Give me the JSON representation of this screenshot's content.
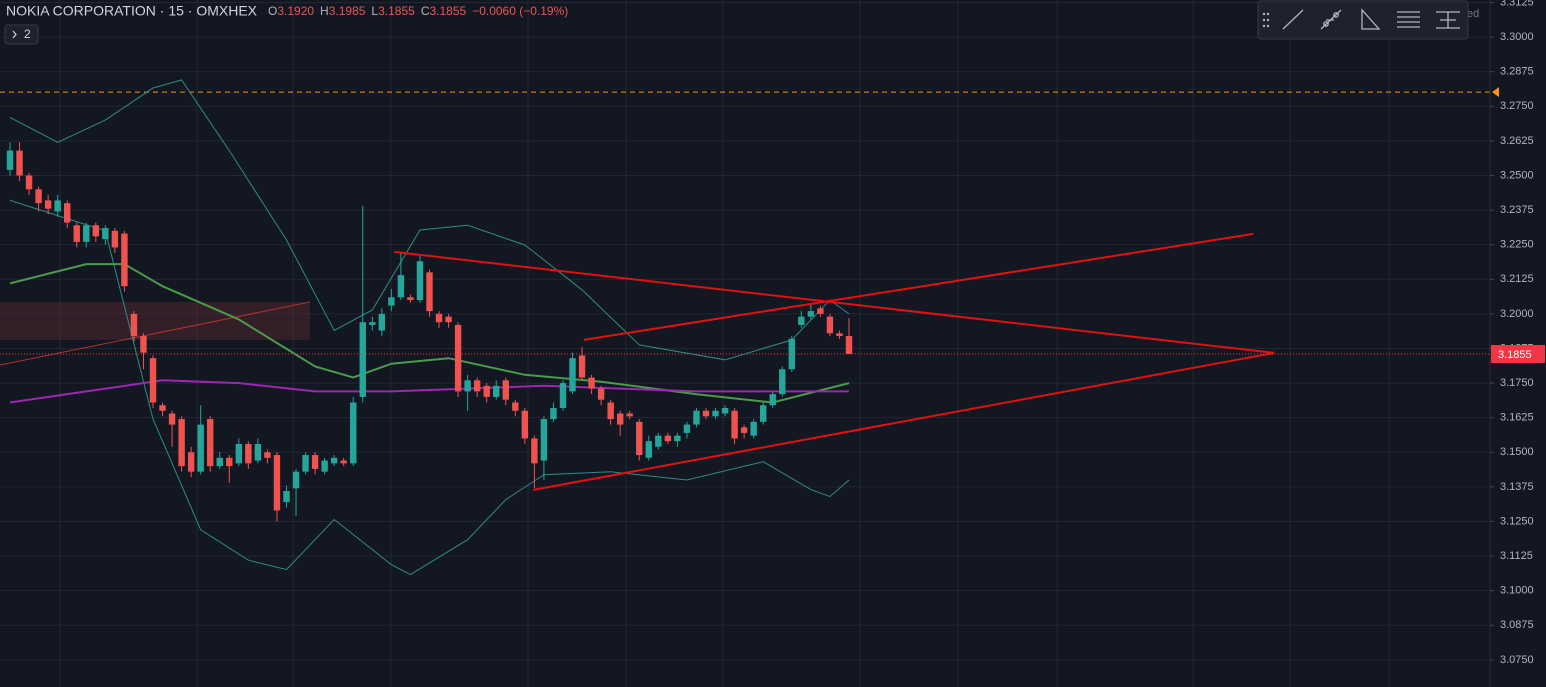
{
  "chart_data": {
    "type": "candlestick",
    "title": "NOKIA CORPORATION · 15 · OMXHEX",
    "ohlc_legend": [
      {
        "label": "O",
        "value": "3.1920"
      },
      {
        "label": "H",
        "value": "3.1985"
      },
      {
        "label": "L",
        "value": "3.1855"
      },
      {
        "label": "C",
        "value": "3.1855"
      }
    ],
    "change": "−0.0060 (−0.19%)",
    "indicators_collapsed": "2",
    "status_fragment": "ed",
    "up_color": "#26a69a",
    "down_color": "#ef5350",
    "ylim": [
      3.0652,
      3.3134
    ],
    "yticks": [
      {
        "value": 3.3125,
        "label": "3.3125"
      },
      {
        "value": 3.3,
        "label": "3.3000"
      },
      {
        "value": 3.2875,
        "label": "3.2875"
      },
      {
        "value": 3.275,
        "label": "3.2750"
      },
      {
        "value": 3.2625,
        "label": "3.2625"
      },
      {
        "value": 3.25,
        "label": "3.2500"
      },
      {
        "value": 3.2375,
        "label": "3.2375"
      },
      {
        "value": 3.225,
        "label": "3.2250"
      },
      {
        "value": 3.2125,
        "label": "3.2125"
      },
      {
        "value": 3.2,
        "label": "3.2000"
      },
      {
        "value": 3.1875,
        "label": "3.1875"
      },
      {
        "value": 3.175,
        "label": "3.1750"
      },
      {
        "value": 3.1625,
        "label": "3.1625"
      },
      {
        "value": 3.15,
        "label": "3.1500"
      },
      {
        "value": 3.1375,
        "label": "3.1375"
      },
      {
        "value": 3.125,
        "label": "3.1250"
      },
      {
        "value": 3.1125,
        "label": "3.1125"
      },
      {
        "value": 3.1,
        "label": "3.1000"
      },
      {
        "value": 3.0875,
        "label": "3.0875"
      },
      {
        "value": 3.075,
        "label": "3.0750"
      }
    ],
    "grid": true,
    "last_price": {
      "value": 3.1855,
      "label": "3.1855",
      "color": "#f23645"
    },
    "candles": {
      "open": [
        3.252,
        3.259,
        3.25,
        3.245,
        3.241,
        3.237,
        3.24,
        3.232,
        3.226,
        3.232,
        3.227,
        3.23,
        3.229,
        3.2,
        3.192,
        3.184,
        3.167,
        3.164,
        3.162,
        3.15,
        3.143,
        3.162,
        3.145,
        3.148,
        3.146,
        3.153,
        3.147,
        3.15,
        3.149,
        3.132,
        3.137,
        3.143,
        3.149,
        3.143,
        3.146,
        3.147,
        3.146,
        3.17,
        3.196,
        3.194,
        3.203,
        3.206,
        3.206,
        3.205,
        3.215,
        3.2,
        3.199,
        3.196,
        3.172,
        3.176,
        3.174,
        3.17,
        3.176,
        3.168,
        3.165,
        3.155,
        3.147,
        3.162,
        3.166,
        3.172,
        3.185,
        3.177,
        3.173,
        3.168,
        3.164,
        3.164,
        3.161,
        3.148,
        3.152,
        3.156,
        3.154,
        3.157,
        3.16,
        3.165,
        3.163,
        3.164,
        3.165,
        3.159,
        3.156,
        3.161,
        3.167,
        3.171,
        3.18,
        3.196,
        3.199,
        3.202,
        3.199,
        3.193,
        3.192
      ],
      "high": [
        3.262,
        3.262,
        3.251,
        3.246,
        3.243,
        3.243,
        3.241,
        3.233,
        3.233,
        3.233,
        3.232,
        3.231,
        3.23,
        3.201,
        3.193,
        3.185,
        3.168,
        3.165,
        3.163,
        3.152,
        3.167,
        3.163,
        3.15,
        3.149,
        3.155,
        3.154,
        3.155,
        3.151,
        3.15,
        3.138,
        3.144,
        3.15,
        3.15,
        3.148,
        3.149,
        3.148,
        3.17,
        3.239,
        3.199,
        3.202,
        3.209,
        3.222,
        3.207,
        3.221,
        3.216,
        3.201,
        3.2,
        3.197,
        3.178,
        3.177,
        3.175,
        3.176,
        3.177,
        3.169,
        3.166,
        3.156,
        3.163,
        3.168,
        3.176,
        3.186,
        3.188,
        3.178,
        3.174,
        3.169,
        3.165,
        3.165,
        3.162,
        3.156,
        3.157,
        3.157,
        3.157,
        3.161,
        3.166,
        3.166,
        3.166,
        3.167,
        3.166,
        3.16,
        3.162,
        3.168,
        3.172,
        3.181,
        3.192,
        3.201,
        3.204,
        3.203,
        3.2,
        3.194,
        3.1985
      ],
      "low": [
        3.25,
        3.248,
        3.243,
        3.237,
        3.236,
        3.235,
        3.231,
        3.224,
        3.224,
        3.226,
        3.225,
        3.222,
        3.208,
        3.19,
        3.18,
        3.166,
        3.163,
        3.152,
        3.143,
        3.141,
        3.142,
        3.143,
        3.144,
        3.139,
        3.145,
        3.144,
        3.146,
        3.146,
        3.125,
        3.13,
        3.127,
        3.142,
        3.142,
        3.142,
        3.145,
        3.145,
        3.145,
        3.168,
        3.194,
        3.192,
        3.201,
        3.205,
        3.204,
        3.204,
        3.199,
        3.195,
        3.195,
        3.17,
        3.165,
        3.17,
        3.168,
        3.169,
        3.167,
        3.163,
        3.153,
        3.137,
        3.14,
        3.161,
        3.165,
        3.171,
        3.176,
        3.171,
        3.167,
        3.16,
        3.156,
        3.162,
        3.147,
        3.147,
        3.151,
        3.153,
        3.152,
        3.155,
        3.159,
        3.162,
        3.162,
        3.163,
        3.153,
        3.155,
        3.155,
        3.16,
        3.166,
        3.17,
        3.179,
        3.195,
        3.198,
        3.199,
        3.192,
        3.191,
        3.1855
      ],
      "close": [
        3.259,
        3.25,
        3.245,
        3.24,
        3.238,
        3.241,
        3.233,
        3.226,
        3.232,
        3.228,
        3.231,
        3.224,
        3.21,
        3.192,
        3.186,
        3.168,
        3.165,
        3.16,
        3.145,
        3.143,
        3.16,
        3.145,
        3.148,
        3.145,
        3.153,
        3.146,
        3.153,
        3.148,
        3.129,
        3.136,
        3.143,
        3.149,
        3.144,
        3.147,
        3.148,
        3.146,
        3.168,
        3.197,
        3.197,
        3.2,
        3.206,
        3.214,
        3.205,
        3.219,
        3.201,
        3.197,
        3.197,
        3.172,
        3.176,
        3.172,
        3.17,
        3.174,
        3.169,
        3.165,
        3.155,
        3.146,
        3.162,
        3.166,
        3.175,
        3.184,
        3.177,
        3.173,
        3.169,
        3.162,
        3.16,
        3.163,
        3.149,
        3.154,
        3.156,
        3.154,
        3.156,
        3.16,
        3.165,
        3.163,
        3.165,
        3.166,
        3.155,
        3.157,
        3.161,
        3.167,
        3.171,
        3.18,
        3.191,
        3.199,
        3.201,
        3.2,
        3.193,
        3.192,
        3.1855
      ]
    },
    "overlays": [
      {
        "color": "#2e8b88",
        "x": [
          0,
          5,
          10,
          15,
          18,
          23,
          29,
          34,
          38,
          43,
          48,
          54,
          60,
          66,
          75,
          82,
          86,
          88
        ],
        "values": [
          3.271,
          3.262,
          3.27,
          3.2816,
          3.2845,
          3.259,
          3.2267,
          3.194,
          3.2014,
          3.2303,
          3.232,
          3.2249,
          3.2087,
          3.1888,
          3.1834,
          3.1906,
          3.205,
          3.2
        ]
      },
      {
        "color": "#2e8b88",
        "x": [
          0,
          10,
          15,
          20,
          25,
          29,
          34,
          40,
          42,
          48,
          52,
          56,
          63,
          71,
          79,
          84,
          86,
          88
        ],
        "values": [
          3.241,
          3.23,
          3.162,
          3.122,
          3.111,
          3.1076,
          3.1257,
          3.1094,
          3.1058,
          3.1184,
          3.1329,
          3.1419,
          3.143,
          3.14,
          3.1466,
          3.1365,
          3.134,
          3.14
        ]
      },
      {
        "color": "#4c9a4c",
        "x": [
          0,
          8,
          12,
          16,
          24,
          32,
          36,
          40,
          46,
          54,
          62,
          72,
          80,
          88
        ],
        "values": [
          3.211,
          3.218,
          3.218,
          3.21,
          3.198,
          3.181,
          3.177,
          3.182,
          3.184,
          3.178,
          3.1755,
          3.171,
          3.168,
          3.175
        ]
      },
      {
        "color": "#9c27b0",
        "x": [
          0,
          8,
          16,
          24,
          32,
          40,
          48,
          56,
          64,
          72,
          80,
          88
        ],
        "values": [
          3.168,
          3.172,
          3.176,
          3.175,
          3.172,
          3.172,
          3.173,
          3.174,
          3.173,
          3.172,
          3.172,
          3.172
        ]
      }
    ],
    "drawings": [
      {
        "color": "#e0120f",
        "x": [
          40.3,
          132.6
        ],
        "values": [
          3.2224,
          3.1859
        ]
      },
      {
        "color": "#e0120f",
        "x": [
          54.9,
          132.6
        ],
        "values": [
          3.1364,
          3.1859
        ]
      },
      {
        "color": "#e0120f",
        "x": [
          60.2,
          130.4
        ],
        "values": [
          3.1906,
          3.2289
        ]
      }
    ],
    "hlines": [
      {
        "value": 3.2801,
        "color": "#f7931a"
      }
    ]
  }
}
